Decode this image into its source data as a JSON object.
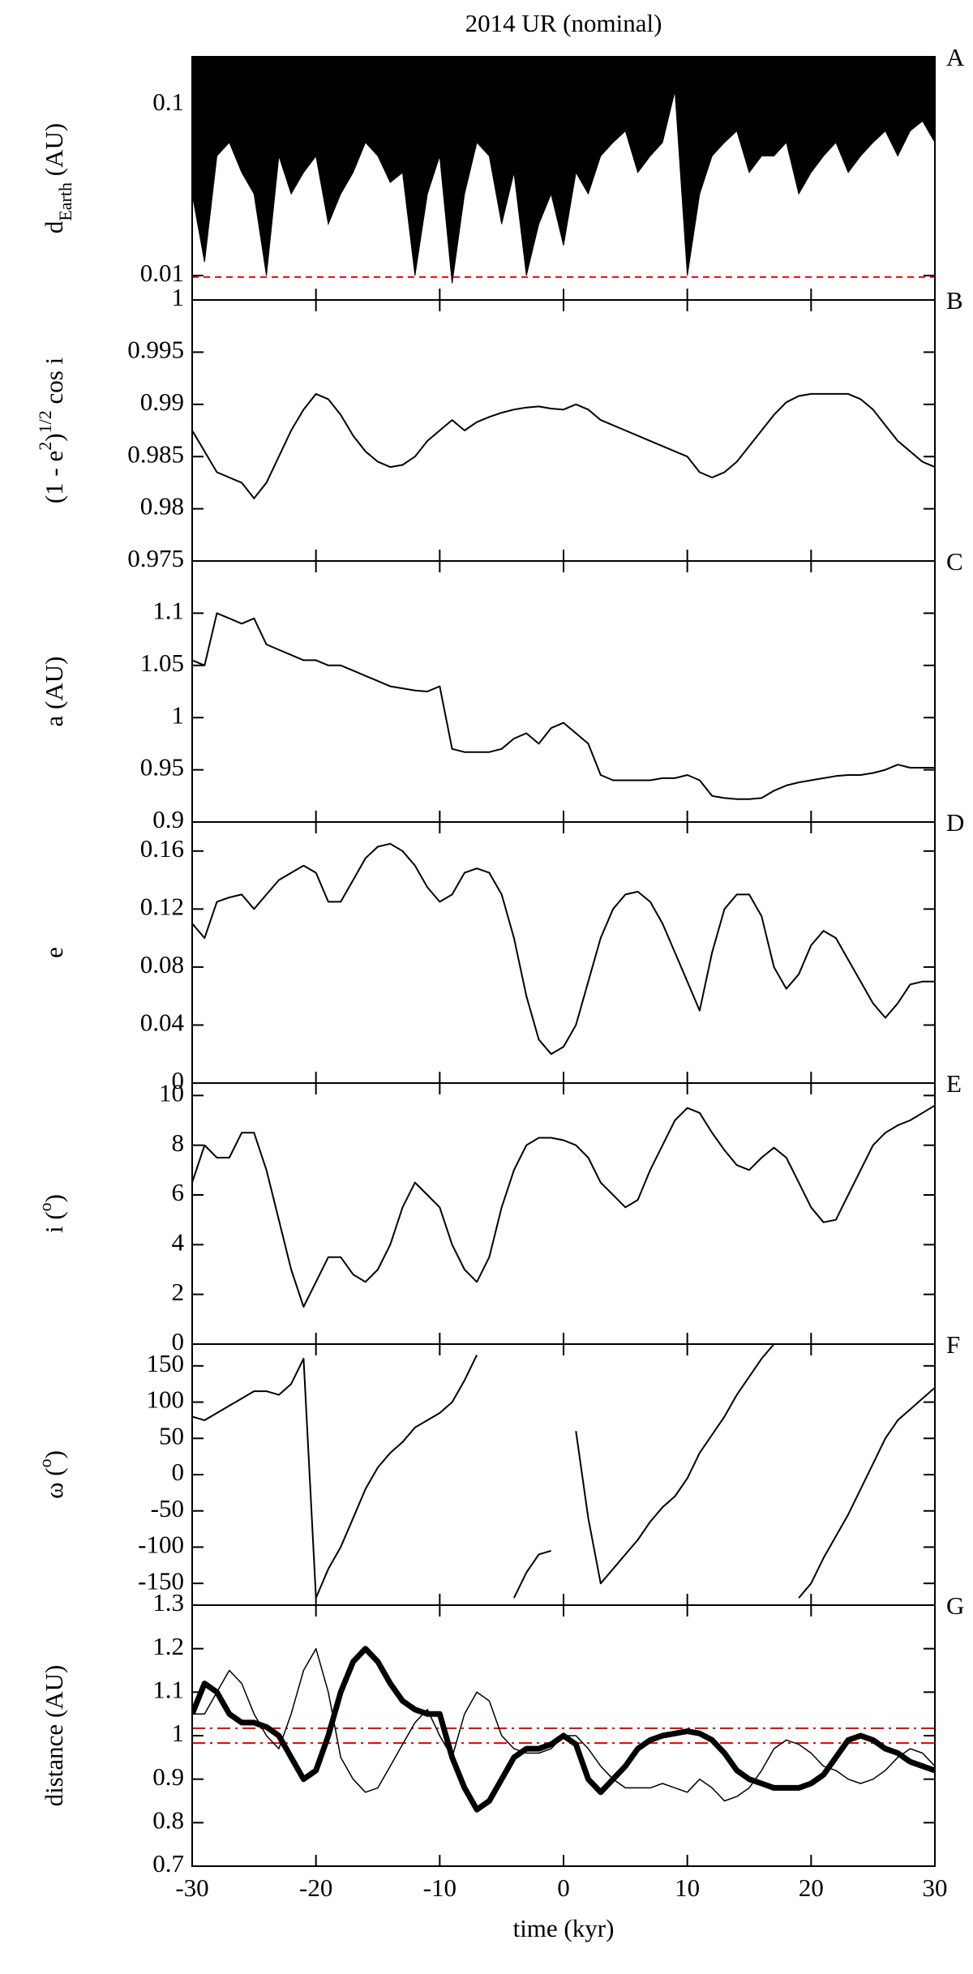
{
  "title": "2014 UR (nominal)",
  "chart_data": [
    {
      "type": "area",
      "panel_label": "A",
      "ylabel": [
        "d",
        "Earth",
        " (AU)"
      ],
      "log_scale": true,
      "color": "#000000",
      "xlim": [
        -30,
        30
      ],
      "ylim": [
        0.0072,
        0.19
      ],
      "yticks": [
        0.01,
        0.1
      ],
      "hlines": [
        {
          "value": 0.0098,
          "color": "#e00000",
          "style": "dashed"
        }
      ],
      "x": [
        -30,
        -29,
        -28,
        -27,
        -26,
        -25,
        -24,
        -23,
        -22,
        -21,
        -20,
        -19,
        -18,
        -17,
        -16,
        -15,
        -14,
        -13,
        -12,
        -11,
        -10,
        -9,
        -8,
        -7,
        -6,
        -5,
        -4,
        -3,
        -2,
        -1,
        0,
        1,
        2,
        3,
        4,
        5,
        6,
        7,
        8,
        9,
        10,
        11,
        12,
        13,
        14,
        15,
        16,
        17,
        18,
        19,
        20,
        21,
        22,
        23,
        24,
        25,
        26,
        27,
        28,
        29,
        30
      ],
      "values": [
        0.03,
        0.012,
        0.05,
        0.06,
        0.04,
        0.03,
        0.01,
        0.05,
        0.03,
        0.04,
        0.05,
        0.02,
        0.03,
        0.04,
        0.06,
        0.05,
        0.035,
        0.04,
        0.01,
        0.03,
        0.05,
        0.009,
        0.03,
        0.06,
        0.05,
        0.02,
        0.04,
        0.01,
        0.02,
        0.03,
        0.015,
        0.04,
        0.03,
        0.05,
        0.06,
        0.07,
        0.04,
        0.05,
        0.06,
        0.12,
        0.01,
        0.03,
        0.05,
        0.06,
        0.07,
        0.04,
        0.05,
        0.05,
        0.06,
        0.03,
        0.04,
        0.05,
        0.06,
        0.04,
        0.05,
        0.06,
        0.07,
        0.05,
        0.07,
        0.08,
        0.06
      ]
    },
    {
      "type": "line",
      "panel_label": "B",
      "ylabel": [
        "(1 - e",
        "2",
        ")",
        "1/2",
        " cos i"
      ],
      "color": "#000000",
      "xlim": [
        -30,
        30
      ],
      "ylim": [
        0.975,
        1
      ],
      "yticks": [
        0.975,
        0.98,
        0.985,
        0.99,
        0.995,
        1
      ],
      "x": [
        -30,
        -29,
        -28,
        -27,
        -26,
        -25,
        -24,
        -23,
        -22,
        -21,
        -20,
        -19,
        -18,
        -17,
        -16,
        -15,
        -14,
        -13,
        -12,
        -11,
        -10,
        -9,
        -8,
        -7,
        -6,
        -5,
        -4,
        -3,
        -2,
        -1,
        0,
        1,
        2,
        3,
        4,
        5,
        6,
        7,
        8,
        9,
        10,
        11,
        12,
        13,
        14,
        15,
        16,
        17,
        18,
        19,
        20,
        21,
        22,
        23,
        24,
        25,
        26,
        27,
        28,
        29,
        30
      ],
      "values": [
        0.9875,
        0.9855,
        0.9835,
        0.983,
        0.9825,
        0.981,
        0.9825,
        0.985,
        0.9875,
        0.9895,
        0.991,
        0.9905,
        0.989,
        0.987,
        0.9855,
        0.9845,
        0.984,
        0.9842,
        0.985,
        0.9865,
        0.9875,
        0.9885,
        0.9875,
        0.9883,
        0.9888,
        0.9892,
        0.9895,
        0.9897,
        0.9898,
        0.9896,
        0.9895,
        0.99,
        0.9895,
        0.9885,
        0.988,
        0.9875,
        0.987,
        0.9865,
        0.986,
        0.9855,
        0.985,
        0.9835,
        0.983,
        0.9835,
        0.9845,
        0.986,
        0.9875,
        0.989,
        0.9902,
        0.9908,
        0.991,
        0.991,
        0.991,
        0.991,
        0.9905,
        0.9895,
        0.988,
        0.9865,
        0.9855,
        0.9845,
        0.984
      ]
    },
    {
      "type": "line",
      "panel_label": "C",
      "ylabel": [
        "a (AU)"
      ],
      "color": "#000000",
      "xlim": [
        -30,
        30
      ],
      "ylim": [
        0.9,
        1.15
      ],
      "yticks": [
        0.9,
        0.95,
        1,
        1.05,
        1.1
      ],
      "x": [
        -30,
        -29,
        -28,
        -27,
        -26,
        -25,
        -24,
        -23,
        -22,
        -21,
        -20,
        -19,
        -18,
        -17,
        -16,
        -15,
        -14,
        -13,
        -12,
        -11,
        -10,
        -9,
        -8,
        -7,
        -6,
        -5,
        -4,
        -3,
        -2,
        -1,
        0,
        1,
        2,
        3,
        4,
        5,
        6,
        7,
        8,
        9,
        10,
        11,
        12,
        13,
        14,
        15,
        16,
        17,
        18,
        19,
        20,
        21,
        22,
        23,
        24,
        25,
        26,
        27,
        28,
        29,
        30
      ],
      "values": [
        1.055,
        1.05,
        1.1,
        1.095,
        1.09,
        1.095,
        1.07,
        1.065,
        1.06,
        1.055,
        1.055,
        1.05,
        1.05,
        1.045,
        1.04,
        1.035,
        1.03,
        1.028,
        1.026,
        1.025,
        1.03,
        0.97,
        0.967,
        0.967,
        0.967,
        0.97,
        0.98,
        0.985,
        0.975,
        0.99,
        0.995,
        0.985,
        0.975,
        0.945,
        0.94,
        0.94,
        0.94,
        0.94,
        0.942,
        0.942,
        0.945,
        0.94,
        0.925,
        0.923,
        0.922,
        0.922,
        0.923,
        0.93,
        0.935,
        0.938,
        0.94,
        0.942,
        0.944,
        0.945,
        0.945,
        0.947,
        0.95,
        0.955,
        0.952,
        0.952,
        0.952
      ]
    },
    {
      "type": "line",
      "panel_label": "D",
      "ylabel": [
        "e"
      ],
      "color": "#000000",
      "xlim": [
        -30,
        30
      ],
      "ylim": [
        0,
        0.18
      ],
      "yticks": [
        0,
        0.04,
        0.08,
        0.12,
        0.16
      ],
      "x": [
        -30,
        -29,
        -28,
        -27,
        -26,
        -25,
        -24,
        -23,
        -22,
        -21,
        -20,
        -19,
        -18,
        -17,
        -16,
        -15,
        -14,
        -13,
        -12,
        -11,
        -10,
        -9,
        -8,
        -7,
        -6,
        -5,
        -4,
        -3,
        -2,
        -1,
        0,
        1,
        2,
        3,
        4,
        5,
        6,
        7,
        8,
        9,
        10,
        11,
        12,
        13,
        14,
        15,
        16,
        17,
        18,
        19,
        20,
        21,
        22,
        23,
        24,
        25,
        26,
        27,
        28,
        29,
        30
      ],
      "values": [
        0.11,
        0.1,
        0.125,
        0.128,
        0.13,
        0.12,
        0.13,
        0.14,
        0.145,
        0.15,
        0.145,
        0.125,
        0.125,
        0.14,
        0.155,
        0.163,
        0.165,
        0.16,
        0.15,
        0.135,
        0.125,
        0.13,
        0.145,
        0.148,
        0.145,
        0.13,
        0.1,
        0.06,
        0.03,
        0.02,
        0.025,
        0.04,
        0.07,
        0.1,
        0.12,
        0.13,
        0.132,
        0.125,
        0.11,
        0.09,
        0.07,
        0.05,
        0.09,
        0.12,
        0.13,
        0.13,
        0.115,
        0.08,
        0.065,
        0.075,
        0.095,
        0.105,
        0.1,
        0.085,
        0.07,
        0.055,
        0.045,
        0.055,
        0.068,
        0.07,
        0.07
      ]
    },
    {
      "type": "line",
      "panel_label": "E",
      "ylabel": [
        "i (",
        "o",
        ")"
      ],
      "color": "#000000",
      "xlim": [
        -30,
        30
      ],
      "ylim": [
        0,
        10.5
      ],
      "yticks": [
        0,
        2,
        4,
        6,
        8,
        10
      ],
      "x": [
        -30,
        -29,
        -28,
        -27,
        -26,
        -25,
        -24,
        -23,
        -22,
        -21,
        -20,
        -19,
        -18,
        -17,
        -16,
        -15,
        -14,
        -13,
        -12,
        -11,
        -10,
        -9,
        -8,
        -7,
        -6,
        -5,
        -4,
        -3,
        -2,
        -1,
        0,
        1,
        2,
        3,
        4,
        5,
        6,
        7,
        8,
        9,
        10,
        11,
        12,
        13,
        14,
        15,
        16,
        17,
        18,
        19,
        20,
        21,
        22,
        23,
        24,
        25,
        26,
        27,
        28,
        29,
        30
      ],
      "values": [
        6.5,
        8,
        7.5,
        7.5,
        8.5,
        8.5,
        7,
        5,
        3,
        1.5,
        2.5,
        3.5,
        3.5,
        2.8,
        2.5,
        3,
        4,
        5.5,
        6.5,
        6,
        5.5,
        4,
        3,
        2.5,
        3.5,
        5.5,
        7,
        8,
        8.3,
        8.3,
        8.2,
        8,
        7.5,
        6.5,
        6,
        5.5,
        5.8,
        7,
        8,
        9,
        9.5,
        9.3,
        8.5,
        7.8,
        7.2,
        7,
        7.5,
        7.9,
        7.5,
        6.5,
        5.5,
        4.9,
        5,
        6,
        7,
        8,
        8.5,
        8.8,
        9,
        9.3,
        9.6
      ]
    },
    {
      "type": "line",
      "panel_label": "F",
      "ylabel": [
        "ω (",
        "o",
        ")"
      ],
      "color": "#000000",
      "xlim": [
        -30,
        30
      ],
      "ylim": [
        -180,
        180
      ],
      "yticks": [
        -150,
        -100,
        -50,
        0,
        50,
        100,
        150
      ],
      "x": [
        -30,
        -29,
        -28,
        -27,
        -26,
        -25,
        -24,
        -23,
        -22,
        -21,
        -20,
        -19,
        -18,
        -17,
        -16,
        -15,
        -14,
        -13,
        -12,
        -11,
        -10,
        -9,
        -8,
        -7,
        -6,
        -5,
        -4,
        -3,
        -2,
        -1,
        0,
        1,
        2,
        3,
        4,
        5,
        6,
        7,
        8,
        9,
        10,
        11,
        12,
        13,
        14,
        15,
        16,
        17,
        18,
        19,
        20,
        21,
        22,
        23,
        24,
        25,
        26,
        27,
        28,
        29,
        30
      ],
      "values": [
        80,
        75,
        85,
        95,
        105,
        115,
        115,
        110,
        125,
        160,
        -170,
        -130,
        -100,
        -60,
        -20,
        10,
        30,
        45,
        65,
        75,
        85,
        100,
        130,
        165,
        null,
        null,
        -170,
        -135,
        -110,
        -105,
        null,
        60,
        -60,
        -150,
        -130,
        -110,
        -90,
        -65,
        -45,
        -30,
        -5,
        30,
        55,
        80,
        110,
        135,
        160,
        180,
        null,
        -170,
        -150,
        -115,
        -85,
        -55,
        -20,
        15,
        50,
        75,
        90,
        105,
        120
      ]
    },
    {
      "type": "line",
      "panel_label": "G",
      "ylabel": [
        "distance (AU)"
      ],
      "xlabel": "time (kyr)",
      "xlim": [
        -30,
        30
      ],
      "xticks": [
        -30,
        -20,
        -10,
        0,
        10,
        20,
        30
      ],
      "ylim": [
        0.7,
        1.3
      ],
      "yticks": [
        0.7,
        0.8,
        0.9,
        1,
        1.1,
        1.2,
        1.3
      ],
      "hlines": [
        {
          "value": 1.017,
          "color": "#e00000",
          "style": "dashdot"
        },
        {
          "value": 0.983,
          "color": "#e00000",
          "style": "dashdot"
        }
      ],
      "x": [
        -30,
        -29,
        -28,
        -27,
        -26,
        -25,
        -24,
        -23,
        -22,
        -21,
        -20,
        -19,
        -18,
        -17,
        -16,
        -15,
        -14,
        -13,
        -12,
        -11,
        -10,
        -9,
        -8,
        -7,
        -6,
        -5,
        -4,
        -3,
        -2,
        -1,
        0,
        1,
        2,
        3,
        4,
        5,
        6,
        7,
        8,
        9,
        10,
        11,
        12,
        13,
        14,
        15,
        16,
        17,
        18,
        19,
        20,
        21,
        22,
        23,
        24,
        25,
        26,
        27,
        28,
        29,
        30
      ],
      "series": [
        {
          "color": "#000000",
          "line_width": 7,
          "values": [
            1.05,
            1.12,
            1.1,
            1.05,
            1.03,
            1.03,
            1.02,
            1.0,
            0.95,
            0.9,
            0.92,
            1.0,
            1.1,
            1.17,
            1.2,
            1.17,
            1.12,
            1.08,
            1.06,
            1.05,
            1.05,
            0.95,
            0.88,
            0.83,
            0.85,
            0.9,
            0.95,
            0.97,
            0.97,
            0.98,
            1.0,
            0.98,
            0.9,
            0.87,
            0.9,
            0.93,
            0.97,
            0.99,
            1.0,
            1.005,
            1.01,
            1.005,
            0.99,
            0.96,
            0.92,
            0.9,
            0.89,
            0.88,
            0.88,
            0.88,
            0.89,
            0.91,
            0.95,
            0.99,
            1.0,
            0.99,
            0.97,
            0.96,
            0.94,
            0.93,
            0.92
          ]
        },
        {
          "color": "#000000",
          "line_width": 1.5,
          "values": [
            1.05,
            1.05,
            1.1,
            1.15,
            1.12,
            1.05,
            1.0,
            0.97,
            1.05,
            1.15,
            1.2,
            1.1,
            0.95,
            0.9,
            0.87,
            0.88,
            0.93,
            0.98,
            1.03,
            1.06,
            1.0,
            0.95,
            1.05,
            1.1,
            1.08,
            1.0,
            0.97,
            0.96,
            0.96,
            0.97,
            1.0,
            1.0,
            0.97,
            0.93,
            0.9,
            0.88,
            0.88,
            0.88,
            0.89,
            0.88,
            0.87,
            0.9,
            0.88,
            0.85,
            0.86,
            0.88,
            0.92,
            0.97,
            0.99,
            0.98,
            0.96,
            0.93,
            0.92,
            0.9,
            0.89,
            0.9,
            0.92,
            0.95,
            0.97,
            0.96,
            0.93
          ]
        }
      ]
    }
  ]
}
